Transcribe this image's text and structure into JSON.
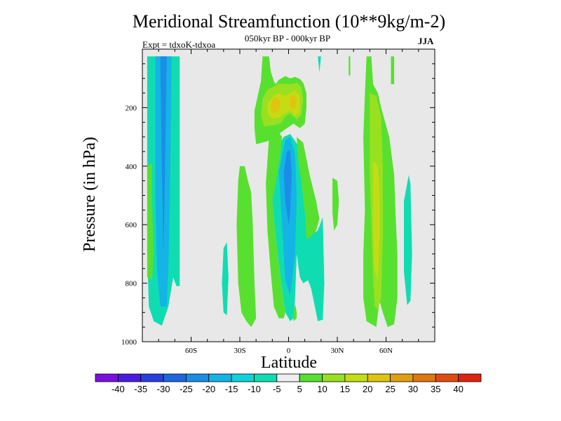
{
  "chart_data": {
    "type": "heatmap",
    "title": "Meridional Streamfunction (10**9kg/m-2)",
    "subtitle": "050kyr BP - 000kyr BP",
    "annotations": {
      "experiment": "Expt = tdxoK-tdxoa",
      "season": "JJA"
    },
    "xlabel": "Latitude",
    "ylabel": "Pressure (in hPa)",
    "x_axis": {
      "range": [
        -90,
        90
      ],
      "ticks": [
        -60,
        -30,
        0,
        30,
        60
      ],
      "tick_labels": [
        "60S",
        "30S",
        "0",
        "30N",
        "60N"
      ]
    },
    "y_axis": {
      "range": [
        0,
        1000
      ],
      "inverted": true,
      "ticks": [
        200,
        400,
        600,
        800,
        1000
      ],
      "tick_labels": [
        "200",
        "400",
        "600",
        "800",
        "1000"
      ]
    },
    "background_color": "#e8e8e8",
    "colorbar": {
      "orientation": "horizontal",
      "levels": [
        -40,
        -35,
        -30,
        -25,
        -20,
        -15,
        -10,
        -5,
        5,
        10,
        15,
        20,
        25,
        30,
        35,
        40
      ],
      "labels": [
        "-40",
        "-35",
        "-30",
        "-25",
        "-20",
        "-15",
        "-10",
        "-5",
        "5",
        "10",
        "15",
        "20",
        "25",
        "30",
        "35",
        "40"
      ],
      "colors": [
        "#7a10e0",
        "#4a1ce0",
        "#2a3ee0",
        "#1e66e0",
        "#1a8ee6",
        "#14b4e6",
        "#10d2dc",
        "#10dcb2",
        "#eeeeee",
        "#58e030",
        "#98e020",
        "#c4dc14",
        "#e0c410",
        "#e0a010",
        "#e07810",
        "#e04c10",
        "#e02410"
      ]
    },
    "contours": [
      {
        "level": "-10",
        "color": "#10dcb2",
        "polygon": [
          [
            -87,
            25
          ],
          [
            -67,
            25
          ],
          [
            -67,
            810
          ],
          [
            -69,
            810
          ],
          [
            -71,
            780
          ],
          [
            -74,
            880
          ],
          [
            -78,
            945
          ],
          [
            -83,
            930
          ],
          [
            -86,
            880
          ],
          [
            -87,
            700
          ]
        ]
      },
      {
        "level": "-15",
        "color": "#14b4e6",
        "polygon": [
          [
            -82,
            25
          ],
          [
            -72,
            25
          ],
          [
            -73,
            500
          ],
          [
            -74,
            750
          ],
          [
            -75,
            880
          ],
          [
            -79,
            880
          ],
          [
            -81,
            750
          ],
          [
            -82,
            500
          ]
        ]
      },
      {
        "level": "-20",
        "color": "#1a8ee6",
        "polygon": [
          [
            -79,
            25
          ],
          [
            -75,
            25
          ],
          [
            -76,
            400
          ],
          [
            -77,
            700
          ],
          [
            -78,
            400
          ]
        ]
      },
      {
        "level": "-10",
        "color": "#10dcb2",
        "polygon": [
          [
            -40,
            680
          ],
          [
            -38,
            660
          ],
          [
            -37,
            780
          ],
          [
            -38,
            910
          ],
          [
            -40,
            900
          ],
          [
            -41,
            800
          ]
        ]
      },
      {
        "level": "-10",
        "color": "#10dcb2",
        "polygon": [
          [
            -3,
            300
          ],
          [
            1,
            290
          ],
          [
            6,
            330
          ],
          [
            8,
            400
          ],
          [
            12,
            540
          ],
          [
            15,
            630
          ],
          [
            18,
            620
          ],
          [
            21,
            575
          ],
          [
            22,
            800
          ],
          [
            21,
            925
          ],
          [
            18,
            930
          ],
          [
            14,
            820
          ],
          [
            12,
            790
          ],
          [
            9,
            800
          ],
          [
            7,
            780
          ],
          [
            5,
            700
          ],
          [
            4,
            850
          ],
          [
            3,
            920
          ],
          [
            1,
            930
          ],
          [
            -2,
            900
          ],
          [
            -5,
            780
          ],
          [
            -8,
            640
          ],
          [
            -10,
            520
          ],
          [
            -11,
            420
          ],
          [
            -9,
            360
          ]
        ]
      },
      {
        "level": "-15",
        "color": "#14b4e6",
        "polygon": [
          [
            -2,
            310
          ],
          [
            1,
            300
          ],
          [
            4,
            360
          ],
          [
            5,
            500
          ],
          [
            4,
            700
          ],
          [
            1,
            840
          ],
          [
            -2,
            790
          ],
          [
            -4,
            600
          ],
          [
            -6,
            420
          ]
        ]
      },
      {
        "level": "-20",
        "color": "#1a8ee6",
        "polygon": [
          [
            -1,
            350
          ],
          [
            1,
            345
          ],
          [
            2,
            430
          ],
          [
            1,
            560
          ],
          [
            0,
            600
          ],
          [
            -2,
            520
          ],
          [
            -3,
            420
          ]
        ]
      },
      {
        "level": "-10",
        "color": "#10dcb2",
        "polygon": [
          [
            18,
            25
          ],
          [
            20,
            25
          ],
          [
            19,
            80
          ]
        ]
      },
      {
        "level": "-10",
        "color": "#10dcb2",
        "polygon": [
          [
            74,
            430
          ],
          [
            75,
            460
          ],
          [
            76,
            700
          ],
          [
            75,
            860
          ],
          [
            73,
            875
          ],
          [
            71,
            760
          ],
          [
            71,
            520
          ]
        ]
      },
      {
        "level": "5",
        "color": "#58e030",
        "polygon": [
          [
            -87,
            400
          ],
          [
            -84,
            390
          ],
          [
            -84,
            520
          ],
          [
            -83,
            700
          ],
          [
            -84,
            790
          ],
          [
            -87,
            780
          ]
        ]
      },
      {
        "level": "5",
        "color": "#58e030",
        "polygon": [
          [
            -30,
            400
          ],
          [
            -27,
            400
          ],
          [
            -25,
            450
          ],
          [
            -23,
            490
          ],
          [
            -22,
            600
          ],
          [
            -21,
            800
          ],
          [
            -20,
            920
          ],
          [
            -23,
            950
          ],
          [
            -26,
            930
          ],
          [
            -29,
            900
          ],
          [
            -31,
            800
          ],
          [
            -32,
            600
          ],
          [
            -31,
            450
          ]
        ]
      },
      {
        "level": "5",
        "color": "#58e030",
        "polygon": [
          [
            -16,
            25
          ],
          [
            -12,
            25
          ],
          [
            -11,
            75
          ],
          [
            -9,
            110
          ],
          [
            -8,
            120
          ],
          [
            -6,
            105
          ],
          [
            -2,
            92
          ],
          [
            1,
            100
          ],
          [
            4,
            95
          ],
          [
            7,
            102
          ],
          [
            9,
            115
          ],
          [
            11,
            150
          ],
          [
            11,
            200
          ],
          [
            10,
            255
          ],
          [
            7,
            270
          ],
          [
            3,
            255
          ],
          [
            -4,
            282
          ],
          [
            -8,
            298
          ],
          [
            -13,
            315
          ],
          [
            -20,
            325
          ],
          [
            -21,
            270
          ],
          [
            -21,
            210
          ],
          [
            -19,
            160
          ],
          [
            -17,
            110
          ]
        ]
      },
      {
        "level": "5",
        "color": "#58e030",
        "polygon": [
          [
            -12,
            300
          ],
          [
            -6,
            285
          ],
          [
            -4,
            300
          ],
          [
            -5,
            360
          ],
          [
            -8,
            460
          ],
          [
            -10,
            520
          ],
          [
            -8,
            640
          ],
          [
            -5,
            780
          ],
          [
            -2,
            900
          ],
          [
            -3,
            920
          ],
          [
            -6,
            920
          ],
          [
            -9,
            880
          ],
          [
            -11,
            760
          ],
          [
            -13,
            620
          ],
          [
            -14,
            460
          ]
        ]
      },
      {
        "level": "5",
        "color": "#58e030",
        "polygon": [
          [
            5,
            300
          ],
          [
            9,
            320
          ],
          [
            13,
            430
          ],
          [
            17,
            520
          ],
          [
            19,
            580
          ],
          [
            17,
            620
          ],
          [
            14,
            640
          ],
          [
            11,
            650
          ],
          [
            10,
            560
          ],
          [
            8,
            460
          ],
          [
            6,
            380
          ]
        ]
      },
      {
        "level": "5",
        "color": "#58e030",
        "polygon": [
          [
            27,
            440
          ],
          [
            30,
            450
          ],
          [
            31,
            520
          ],
          [
            30,
            600
          ],
          [
            28,
            620
          ],
          [
            27,
            560
          ]
        ]
      },
      {
        "level": "5",
        "color": "#58e030",
        "polygon": [
          [
            37,
            25
          ],
          [
            38,
            25
          ],
          [
            38,
            90
          ],
          [
            37,
            90
          ]
        ]
      },
      {
        "level": "5",
        "color": "#58e030",
        "polygon": [
          [
            4,
            870
          ],
          [
            5,
            900
          ],
          [
            5,
            920
          ],
          [
            3,
            930
          ],
          [
            3,
            900
          ]
        ]
      },
      {
        "level": "5",
        "color": "#58e030",
        "polygon": [
          [
            63,
            25
          ],
          [
            65,
            25
          ],
          [
            65,
            120
          ],
          [
            63,
            120
          ]
        ]
      },
      {
        "level": "5",
        "color": "#58e030",
        "polygon": [
          [
            48,
            25
          ],
          [
            51,
            25
          ],
          [
            52,
            120
          ],
          [
            55,
            150
          ],
          [
            57,
            200
          ],
          [
            62,
            300
          ],
          [
            65,
            430
          ],
          [
            66,
            580
          ],
          [
            67,
            700
          ],
          [
            67,
            850
          ],
          [
            65,
            940
          ],
          [
            61,
            950
          ],
          [
            58,
            900
          ],
          [
            56,
            860
          ],
          [
            54,
            950
          ],
          [
            48,
            930
          ],
          [
            46,
            850
          ],
          [
            46,
            700
          ],
          [
            47,
            550
          ],
          [
            46,
            300
          ],
          [
            47,
            150
          ]
        ]
      },
      {
        "level": "10",
        "color": "#98e020",
        "polygon": [
          [
            -10,
            130
          ],
          [
            -6,
            118
          ],
          [
            -2,
            118
          ],
          [
            1,
            120
          ],
          [
            5,
            115
          ],
          [
            8,
            130
          ],
          [
            9,
            170
          ],
          [
            8,
            225
          ],
          [
            5,
            240
          ],
          [
            1,
            220
          ],
          [
            -2,
            230
          ],
          [
            -5,
            255
          ],
          [
            -10,
            260
          ],
          [
            -15,
            265
          ],
          [
            -17,
            225
          ],
          [
            -16,
            170
          ],
          [
            -13,
            140
          ]
        ]
      },
      {
        "level": "10",
        "color": "#98e020",
        "polygon": [
          [
            50,
            150
          ],
          [
            54,
            160
          ],
          [
            57,
            230
          ],
          [
            58,
            400
          ],
          [
            58,
            650
          ],
          [
            57,
            850
          ],
          [
            55,
            890
          ],
          [
            53,
            880
          ],
          [
            52,
            780
          ],
          [
            51,
            600
          ],
          [
            50,
            430
          ],
          [
            50,
            250
          ]
        ]
      },
      {
        "level": "15",
        "color": "#c4dc14",
        "polygon": [
          [
            -9,
            160
          ],
          [
            -6,
            150
          ],
          [
            -2,
            160
          ],
          [
            1,
            150
          ],
          [
            4,
            140
          ],
          [
            7,
            160
          ],
          [
            7,
            215
          ],
          [
            4,
            228
          ],
          [
            1,
            210
          ],
          [
            -3,
            222
          ],
          [
            -6,
            235
          ],
          [
            -10,
            238
          ],
          [
            -13,
            220
          ],
          [
            -13,
            185
          ]
        ]
      },
      {
        "level": "15",
        "color": "#c4dc14",
        "polygon": [
          [
            52,
            380
          ],
          [
            55,
            400
          ],
          [
            56,
            500
          ],
          [
            56,
            650
          ],
          [
            55,
            790
          ],
          [
            53,
            760
          ],
          [
            52,
            620
          ],
          [
            52,
            480
          ]
        ]
      },
      {
        "level": "20",
        "color": "#e0c410",
        "polygon": [
          [
            -10,
            172
          ],
          [
            -7,
            165
          ],
          [
            -5,
            180
          ],
          [
            -6,
            210
          ],
          [
            -9,
            220
          ],
          [
            -11,
            200
          ]
        ]
      },
      {
        "level": "20",
        "color": "#e0c410",
        "polygon": [
          [
            1,
            165
          ],
          [
            3,
            155
          ],
          [
            5,
            175
          ],
          [
            4,
            205
          ],
          [
            1,
            200
          ]
        ]
      }
    ]
  }
}
